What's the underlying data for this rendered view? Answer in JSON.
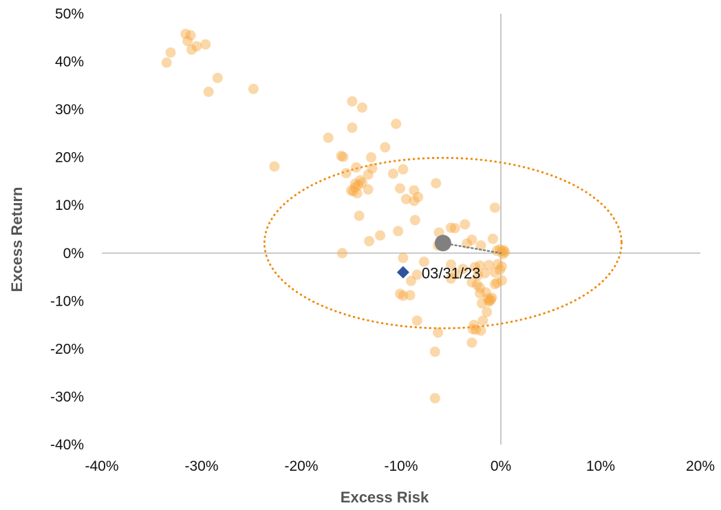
{
  "chart_data": {
    "type": "scatter",
    "title": "",
    "xlabel": "Excess Risk",
    "ylabel": "Excess Return",
    "xlim": [
      -40,
      20
    ],
    "ylim": [
      -40,
      50
    ],
    "x_ticks": [
      -40,
      -30,
      -20,
      -10,
      0,
      10,
      20
    ],
    "y_ticks": [
      -40,
      -30,
      -20,
      -10,
      0,
      10,
      20,
      30,
      40,
      50
    ],
    "x_tick_labels": [
      "-40%",
      "-30%",
      "-20%",
      "-10%",
      "0%",
      "10%",
      "20%"
    ],
    "y_tick_labels": [
      "-40%",
      "-30%",
      "-20%",
      "-10%",
      "0%",
      "10%",
      "20%",
      "30%",
      "40%",
      "50%"
    ],
    "grid": false,
    "zero_axes": true,
    "colors": {
      "points": "#f7a941",
      "ellipse": "#f0890c",
      "mean": "#808080",
      "current": "#2e52a0",
      "zero_line": "#c8c8c8"
    },
    "series": [
      {
        "type": "scatter",
        "points": [
          [
            -31.6,
            45.8
          ],
          [
            -31.1,
            45.5
          ],
          [
            -31.4,
            44.3
          ],
          [
            -29.6,
            43.6
          ],
          [
            -30.5,
            43.2
          ],
          [
            -33.1,
            41.9
          ],
          [
            -31.0,
            42.5
          ],
          [
            -33.5,
            39.8
          ],
          [
            -28.4,
            36.6
          ],
          [
            -29.3,
            33.7
          ],
          [
            -24.8,
            34.3
          ],
          [
            -14.9,
            31.7
          ],
          [
            -13.9,
            30.4
          ],
          [
            -14.9,
            26.2
          ],
          [
            -10.5,
            27.0
          ],
          [
            -17.3,
            24.1
          ],
          [
            -11.6,
            22.1
          ],
          [
            -22.7,
            18.1
          ],
          [
            -16.0,
            20.3
          ],
          [
            -15.8,
            20.1
          ],
          [
            -13.0,
            20.0
          ],
          [
            -14.5,
            17.9
          ],
          [
            -12.9,
            17.7
          ],
          [
            -15.5,
            16.7
          ],
          [
            -13.3,
            16.4
          ],
          [
            -9.8,
            17.5
          ],
          [
            -10.8,
            16.6
          ],
          [
            -14.1,
            15.2
          ],
          [
            -13.9,
            14.7
          ],
          [
            -14.6,
            14.5
          ],
          [
            -14.3,
            14.2
          ],
          [
            -14.6,
            13.7
          ],
          [
            -15.0,
            13.1
          ],
          [
            -14.8,
            12.9
          ],
          [
            -13.3,
            13.3
          ],
          [
            -14.4,
            12.5
          ],
          [
            -10.1,
            13.5
          ],
          [
            -8.7,
            13.1
          ],
          [
            -6.5,
            14.6
          ],
          [
            -9.5,
            11.3
          ],
          [
            -8.3,
            11.7
          ],
          [
            -8.7,
            10.9
          ],
          [
            -14.2,
            7.8
          ],
          [
            -8.6,
            6.9
          ],
          [
            -12.1,
            3.7
          ],
          [
            -13.2,
            2.5
          ],
          [
            -10.3,
            4.6
          ],
          [
            -6.2,
            4.3
          ],
          [
            -5.0,
            5.3
          ],
          [
            -4.6,
            5.2
          ],
          [
            -3.6,
            6.0
          ],
          [
            -0.6,
            9.5
          ],
          [
            -0.8,
            3.0
          ],
          [
            -2.9,
            2.8
          ],
          [
            -3.4,
            2.0
          ],
          [
            -2.0,
            1.6
          ],
          [
            -6.3,
            1.6
          ],
          [
            -0.4,
            0.5
          ],
          [
            0.1,
            0.4
          ],
          [
            0.4,
            0.2
          ],
          [
            0.2,
            -0.2
          ],
          [
            -0.1,
            0.8
          ],
          [
            0.3,
            0.6
          ],
          [
            -15.9,
            0.0
          ],
          [
            -9.8,
            -1.0
          ],
          [
            -7.7,
            -1.8
          ],
          [
            -5.0,
            -2.4
          ],
          [
            -3.8,
            -3.3
          ],
          [
            -2.6,
            -2.9
          ],
          [
            -2.1,
            -2.6
          ],
          [
            -1.2,
            -2.5
          ],
          [
            -0.3,
            -2.3
          ],
          [
            0.1,
            -2.8
          ],
          [
            -0.1,
            -3.5
          ],
          [
            -0.6,
            -4.0
          ],
          [
            -1.6,
            -4.2
          ],
          [
            -2.3,
            -4.6
          ],
          [
            -4.6,
            -4.4
          ],
          [
            -8.4,
            -4.5
          ],
          [
            -9.0,
            -5.8
          ],
          [
            -5.0,
            -5.3
          ],
          [
            -2.9,
            -6.1
          ],
          [
            -2.4,
            -6.6
          ],
          [
            -2.1,
            -7.2
          ],
          [
            -0.4,
            -6.2
          ],
          [
            -0.6,
            -6.5
          ],
          [
            0.1,
            -5.7
          ],
          [
            -1.5,
            -8.2
          ],
          [
            -2.1,
            -8.4
          ],
          [
            -10.1,
            -8.5
          ],
          [
            -9.8,
            -8.9
          ],
          [
            -9.1,
            -8.8
          ],
          [
            -1.3,
            -9.5
          ],
          [
            -1.0,
            -9.7
          ],
          [
            -0.9,
            -9.3
          ],
          [
            -1.1,
            -9.9
          ],
          [
            -1.2,
            -10.1
          ],
          [
            -1.9,
            -10.5
          ],
          [
            -1.4,
            -12.3
          ],
          [
            -8.4,
            -14.1
          ],
          [
            -1.8,
            -14.1
          ],
          [
            -2.7,
            -15.0
          ],
          [
            -2.8,
            -15.9
          ],
          [
            -2.5,
            -16.0
          ],
          [
            -2.0,
            -16.2
          ],
          [
            -6.3,
            -16.6
          ],
          [
            -2.9,
            -18.7
          ],
          [
            -6.6,
            -20.6
          ],
          [
            -6.6,
            -30.3
          ]
        ]
      }
    ],
    "ellipse": {
      "cx": -5.8,
      "cy": 2.1,
      "rx": 17.9,
      "ry": 17.8
    },
    "mean_point": {
      "x": -5.8,
      "y": 2.1,
      "connector_to": [
        0,
        0
      ]
    },
    "current_point": {
      "x": -9.8,
      "y": -4.0,
      "label": "03/31/23"
    }
  }
}
